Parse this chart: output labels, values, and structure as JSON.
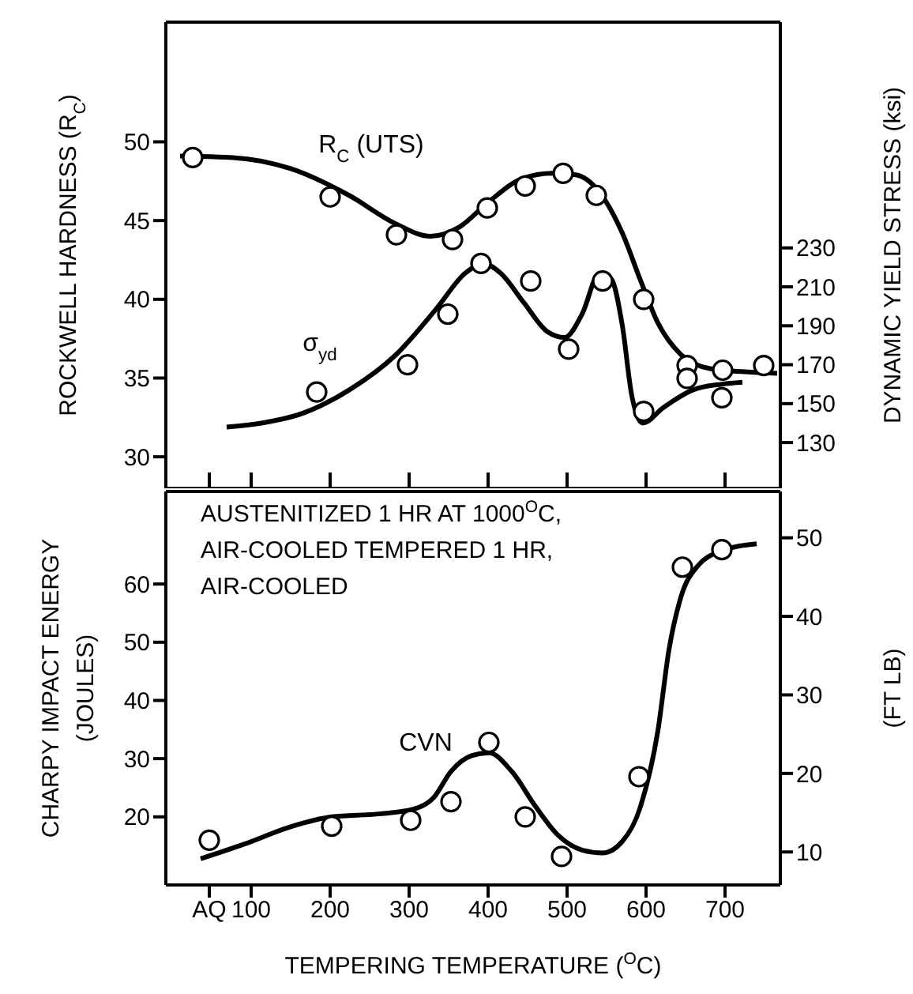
{
  "chart_data": [
    {
      "type": "scatter",
      "ylabel": "ROCKWELL HARDNESS (R$_{C}$)",
      "y2label": "DYNAMIC YIELD STRESS (ksi)",
      "xlim": [
        -8,
        770
      ],
      "xticks": [
        {
          "value": 47,
          "label": null
        },
        100,
        200,
        300,
        400,
        500,
        600,
        700
      ],
      "ylim": [
        28,
        57.6
      ],
      "yticks": [
        30,
        35,
        40,
        45,
        50
      ],
      "y2lim": [
        106.5,
        346
      ],
      "y2ticks": [
        130,
        150,
        170,
        190,
        210,
        230
      ],
      "tick_labels": "y",
      "series": [
        {
          "marker": "circle",
          "name": "R$_{C}$ (UTS)",
          "color": "#000000",
          "x": [
            26,
            200,
            284,
            355,
            399,
            447,
            495,
            537,
            597,
            652,
            697,
            749
          ],
          "values": [
            49.0,
            46.5,
            44.1,
            43.8,
            45.8,
            47.2,
            48.0,
            46.6,
            40.0,
            35.8,
            35.5,
            35.8
          ]
        },
        {
          "type": "line",
          "marker": "none",
          "color": "#000000",
          "x": [
            10,
            77,
            150,
            224,
            283,
            327,
            364,
            401,
            445,
            482,
            511,
            541,
            570,
            593,
            615,
            644,
            681,
            725,
            766
          ],
          "values": [
            49.1,
            49.0,
            48.3,
            46.6,
            44.8,
            44.0,
            44.6,
            46.2,
            47.7,
            48.0,
            47.9,
            46.8,
            44.2,
            41.2,
            38.5,
            36.5,
            35.6,
            35.4,
            35.3
          ]
        },
        {
          "marker": "circle",
          "name": "σ$_{yd}$",
          "axis": "y2",
          "color": "#000000",
          "x": [
            183,
            298,
            349,
            391,
            454,
            502,
            545,
            597,
            652,
            696
          ],
          "values": [
            156,
            170,
            196,
            222,
            213,
            178,
            213,
            146,
            163,
            153
          ]
        },
        {
          "type": "line",
          "marker": "none",
          "axis": "y2",
          "color": "#000000",
          "x": [
            69,
            113,
            165,
            224,
            283,
            335,
            371,
            394,
            416,
            445,
            475,
            497,
            519,
            541,
            556,
            570,
            582,
            596,
            622,
            659,
            696,
            722
          ],
          "values": [
            138,
            140,
            145,
            157,
            175,
            199,
            217,
            222,
            217,
            202,
            187,
            184,
            196,
            217,
            214,
            190,
            154,
            140,
            148,
            157,
            160,
            161
          ]
        }
      ]
    },
    {
      "type": "scatter",
      "xlabel": "TEMPERING TEMPERATURE ($^{O}$C)",
      "ylabel": "CHARPY IMPACT ENERGY\n(JOULES)",
      "y2label": "(FT LB)",
      "annotations": [
        "AUSTENITIZED 1 HR AT 1000$^{O}$C,\nAIR-COOLED TEMPERED 1 HR,\nAIR-COOLED"
      ],
      "xlim": [
        -8,
        770
      ],
      "xticks": [
        {
          "value": 47,
          "label": "AQ"
        },
        100,
        200,
        300,
        400,
        500,
        600,
        700
      ],
      "ylim": [
        8.3,
        75.9
      ],
      "yticks": [
        20,
        30,
        40,
        50,
        60
      ],
      "y2lim": [
        5.8,
        55.9
      ],
      "y2ticks": [
        10,
        20,
        30,
        40,
        50
      ],
      "series": [
        {
          "marker": "circle",
          "name": "CVN",
          "color": "#000000",
          "x": [
            47,
            202,
            302,
            353,
            401,
            447,
            493,
            591,
            646,
            696
          ],
          "values": [
            16.0,
            18.4,
            19.4,
            22.6,
            32.8,
            20.0,
            13.2,
            26.9,
            62.9,
            65.9
          ]
        },
        {
          "type": "line",
          "marker": "none",
          "color": "#000000",
          "x": [
            36,
            91,
            150,
            202,
            261,
            305,
            331,
            353,
            379,
            401,
            430,
            460,
            489,
            519,
            545,
            570,
            593,
            615,
            629,
            644,
            666,
            696,
            740
          ],
          "values": [
            12.8,
            15.3,
            18.3,
            20.0,
            20.5,
            21.3,
            23.3,
            27.8,
            30.5,
            31.0,
            27.8,
            21.8,
            16.8,
            14.3,
            13.8,
            15.8,
            21.8,
            34.8,
            48.7,
            57.7,
            63.2,
            65.7,
            66.9
          ]
        }
      ]
    }
  ]
}
